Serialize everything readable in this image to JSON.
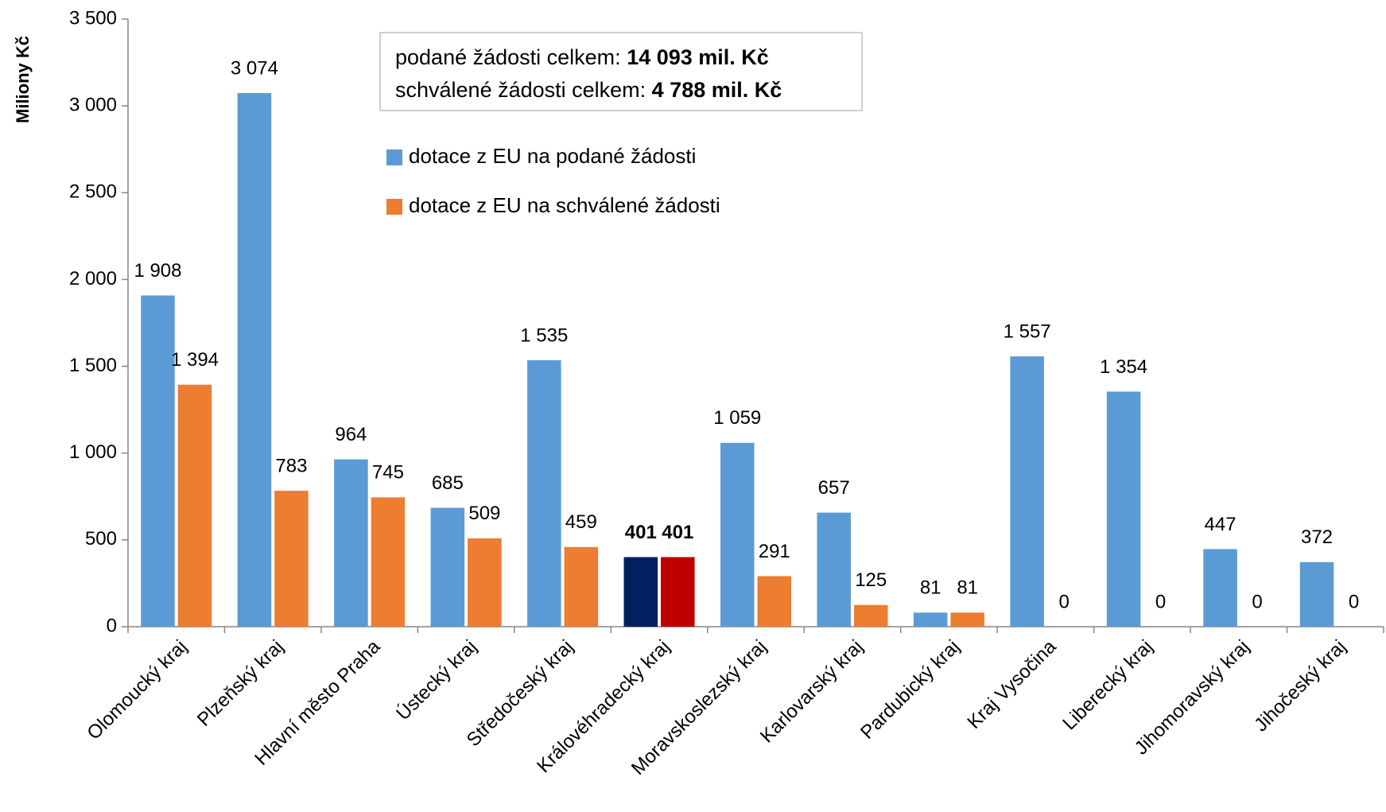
{
  "chart_data": {
    "type": "bar",
    "y_axis_label": "Miliony Kč",
    "categories": [
      "Olomoucký kraj",
      "Plzeňský kraj",
      "Hlavní město Praha",
      "Ústecký kraj",
      "Středočeský kraj",
      "Královéhradecký kraj",
      "Moravskoslezský kraj",
      "Karlovarský kraj",
      "Pardubický kraj",
      "Kraj Vysočina",
      "Liberecký kraj",
      "Jihomoravský kraj",
      "Jihočeský kraj"
    ],
    "series": [
      {
        "name": "dotace z EU na podané žádosti",
        "color": "#5b9bd5",
        "colors": [
          "#5b9bd5",
          "#5b9bd5",
          "#5b9bd5",
          "#5b9bd5",
          "#5b9bd5",
          "#002060",
          "#5b9bd5",
          "#5b9bd5",
          "#5b9bd5",
          "#5b9bd5",
          "#5b9bd5",
          "#5b9bd5",
          "#5b9bd5"
        ],
        "label_weights": [
          "normal",
          "normal",
          "normal",
          "normal",
          "normal",
          "bold",
          "normal",
          "normal",
          "normal",
          "normal",
          "normal",
          "normal",
          "normal"
        ],
        "values": [
          1908,
          3074,
          964,
          685,
          1535,
          401,
          1059,
          657,
          81,
          1557,
          1354,
          447,
          372
        ],
        "value_labels": [
          "1 908",
          "3 074",
          "964",
          "685",
          "1 535",
          "401",
          "1 059",
          "657",
          "81",
          "1 557",
          "1 354",
          "447",
          "372"
        ]
      },
      {
        "name": "dotace z EU na schválené žádosti",
        "color": "#ed7d31",
        "colors": [
          "#ed7d31",
          "#ed7d31",
          "#ed7d31",
          "#ed7d31",
          "#ed7d31",
          "#c00000",
          "#ed7d31",
          "#ed7d31",
          "#ed7d31",
          "#ed7d31",
          "#ed7d31",
          "#ed7d31",
          "#ed7d31"
        ],
        "label_weights": [
          "normal",
          "normal",
          "normal",
          "normal",
          "normal",
          "bold",
          "normal",
          "normal",
          "normal",
          "normal",
          "normal",
          "normal",
          "normal"
        ],
        "values": [
          1394,
          783,
          745,
          509,
          459,
          401,
          291,
          125,
          81,
          0,
          0,
          0,
          0
        ],
        "value_labels": [
          "1 394",
          "783",
          "745",
          "509",
          "459",
          "401",
          "291",
          "125",
          "81",
          "0",
          "0",
          "0",
          "0"
        ]
      }
    ],
    "annotations": [
      {
        "text": "podané žádosti celkem: ",
        "bold": "14 093 mil. Kč"
      },
      {
        "text": "schválené žádosti celkem: ",
        "bold": "4 788 mil. Kč"
      }
    ],
    "ylim": [
      0,
      3500
    ],
    "yticks": [
      0,
      500,
      {
        "value": 1000,
        "label": "1 000"
      },
      {
        "value": 1500,
        "label": "1 500"
      },
      {
        "value": 2000,
        "label": "2 000"
      },
      {
        "value": 2500,
        "label": "2 500"
      },
      {
        "value": 3000,
        "label": "3 000"
      },
      {
        "value": 3500,
        "label": "3 500"
      }
    ],
    "grid": false
  }
}
